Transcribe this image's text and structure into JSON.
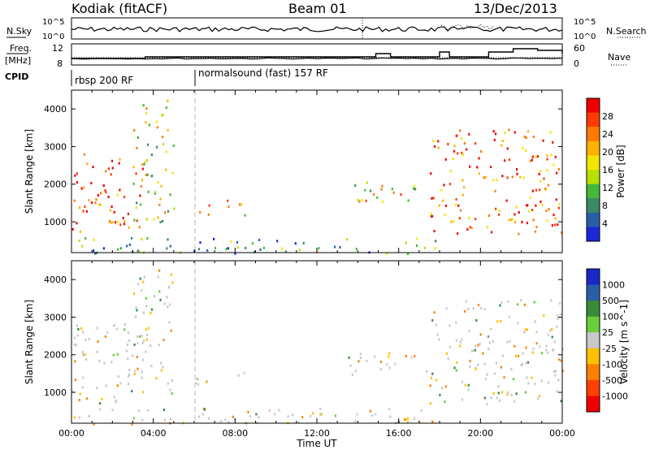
{
  "header": {
    "station": "Kodiak (fitACF)",
    "beam": "Beam 01",
    "date": "13/Dec/2013"
  },
  "top_panels": {
    "nsky_label": "N.Sky",
    "nsky_ticks": [
      "10^5",
      "10^0"
    ],
    "nsearch_label": "N.Search",
    "nsearch_ticks": [
      "10^5",
      "10^0"
    ],
    "freq_label": "Freq.",
    "freq_unit": "[MHz]",
    "freq_ticks": [
      "12",
      "8"
    ],
    "nave_label": "Nave",
    "nave_ticks": [
      "60",
      "0"
    ],
    "cpid_label": "CPID",
    "cpid_segments": [
      {
        "label": "rbsp 200 RF",
        "start_hour": 0
      },
      {
        "label": "normalsound (fast) 157 RF",
        "start_hour": 6
      }
    ]
  },
  "chart_data": [
    {
      "type": "heatmap",
      "id": "power",
      "ylabel": "Slant Range [km]",
      "xlabel": "",
      "xlim_hours": [
        0,
        24
      ],
      "ylim_km": [
        180,
        4500
      ],
      "yticks": [
        1000,
        2000,
        3000,
        4000
      ],
      "colorbar": {
        "label": "Power [dB]",
        "ticks": [
          "28",
          "24",
          "20",
          "16",
          "12",
          "8",
          "4"
        ],
        "colors": [
          "#ee0000",
          "#ff3a00",
          "#ff7a00",
          "#ffb000",
          "#f2e600",
          "#b8e000",
          "#44b83a",
          "#3a8a66",
          "#2a5fa8",
          "#1a28d8"
        ]
      },
      "regions": [
        {
          "t0": 0.0,
          "t1": 1.0,
          "r0": 700,
          "r1": 2900,
          "level": 0.9
        },
        {
          "t0": 1.0,
          "t1": 3.5,
          "r0": 850,
          "r1": 2800,
          "level": 0.85
        },
        {
          "t0": 3.0,
          "t1": 5.0,
          "r0": 1000,
          "r1": 4300,
          "level": 0.5
        },
        {
          "t0": 6.0,
          "t1": 8.5,
          "r0": 1200,
          "r1": 1600,
          "level": 0.6
        },
        {
          "t0": 13.5,
          "t1": 17.5,
          "r0": 1500,
          "r1": 2100,
          "level": 0.55
        },
        {
          "t0": 17.5,
          "t1": 24.0,
          "r0": 700,
          "r1": 3500,
          "level": 0.8
        },
        {
          "t0": 0.0,
          "t1": 18.0,
          "r0": 180,
          "r1": 600,
          "level": 0.3
        }
      ]
    },
    {
      "type": "heatmap",
      "id": "velocity",
      "ylabel": "Slant Range [km]",
      "xlabel": "Time UT",
      "xlim_hours": [
        0,
        24
      ],
      "ylim_km": [
        180,
        4500
      ],
      "yticks": [
        1000,
        2000,
        3000,
        4000
      ],
      "xtick_labels": [
        "00:00",
        "04:00",
        "08:00",
        "12:00",
        "16:00",
        "20:00",
        "00:00"
      ],
      "colorbar": {
        "label": "Velocity [m s^-1]",
        "ticks": [
          "1000",
          "500",
          "100",
          "25",
          "-25",
          "-100",
          "-500",
          "-1000"
        ],
        "colors": [
          "#1a28c8",
          "#2a5fa8",
          "#3a8a3a",
          "#6acd3a",
          "#c8c8c8",
          "#ffc000",
          "#ff8000",
          "#ff4000",
          "#ee0000"
        ]
      },
      "regions": [
        {
          "t0": 0.0,
          "t1": 3.5,
          "r0": 700,
          "r1": 2900,
          "level": 0.5
        },
        {
          "t0": 3.0,
          "t1": 5.0,
          "r0": 1000,
          "r1": 4300,
          "level": 0.5
        },
        {
          "t0": 6.0,
          "t1": 8.5,
          "r0": 1200,
          "r1": 1600,
          "level": 0.5
        },
        {
          "t0": 13.5,
          "t1": 17.5,
          "r0": 1500,
          "r1": 2100,
          "level": 0.5
        },
        {
          "t0": 17.5,
          "t1": 24.0,
          "r0": 700,
          "r1": 3500,
          "level": 0.5
        },
        {
          "t0": 0.0,
          "t1": 18.0,
          "r0": 180,
          "r1": 600,
          "level": 0.5
        }
      ]
    }
  ]
}
